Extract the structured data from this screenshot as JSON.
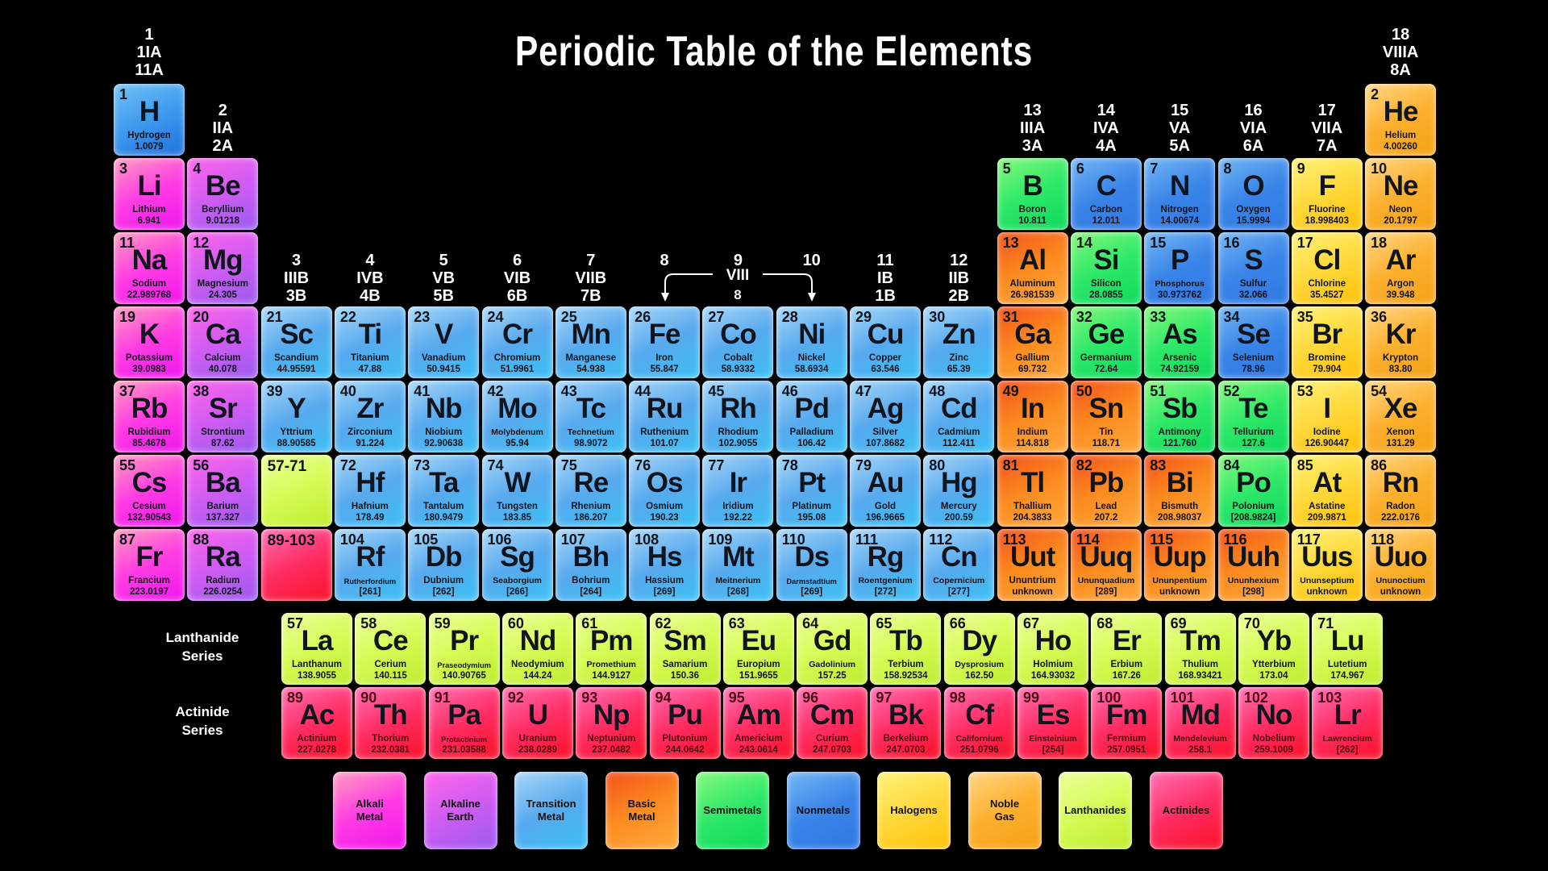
{
  "title": "Periodic Table of the Elements",
  "viii_bracket": {
    "label": "VIII",
    "sublabel": "8"
  },
  "series_labels": {
    "lanthanide": "Lanthanide\nSeries",
    "actinide": "Actinide\nSeries"
  },
  "group_labels": [
    {
      "col": 1,
      "band": "top",
      "lines": "1\n1IA\n11A"
    },
    {
      "col": 18,
      "band": "top",
      "lines": "18\nVIIIA\n8A"
    },
    {
      "col": 2,
      "band": "mid",
      "lines": "2\nIIA\n2A"
    },
    {
      "col": 13,
      "band": "mid",
      "lines": "13\nIIIA\n3A"
    },
    {
      "col": 14,
      "band": "mid",
      "lines": "14\nIVA\n4A"
    },
    {
      "col": 15,
      "band": "mid",
      "lines": "15\nVA\n5A"
    },
    {
      "col": 16,
      "band": "mid",
      "lines": "16\nVIA\n6A"
    },
    {
      "col": 17,
      "band": "mid",
      "lines": "17\nVIIA\n7A"
    },
    {
      "col": 3,
      "band": "low",
      "lines": "3\nIIIB\n3B"
    },
    {
      "col": 4,
      "band": "low",
      "lines": "4\nIVB\n4B"
    },
    {
      "col": 5,
      "band": "low",
      "lines": "5\nVB\n5B"
    },
    {
      "col": 6,
      "band": "low",
      "lines": "6\nVIB\n6B"
    },
    {
      "col": 7,
      "band": "low",
      "lines": "7\nVIIB\n7B"
    },
    {
      "col": 8,
      "band": "low",
      "lines": "8"
    },
    {
      "col": 9,
      "band": "low",
      "lines": "9"
    },
    {
      "col": 10,
      "band": "low",
      "lines": "10"
    },
    {
      "col": 11,
      "band": "low",
      "lines": "11\nIB\n1B"
    },
    {
      "col": 12,
      "band": "low",
      "lines": "12\nIIB\n2B"
    }
  ],
  "element_fields": [
    "number",
    "symbol",
    "name",
    "mass",
    "category",
    "row",
    "col"
  ],
  "elements": [
    [
      1,
      "H",
      "Hydrogen",
      "1.0079",
      "hydrogen",
      1,
      1
    ],
    [
      2,
      "He",
      "Helium",
      "4.00260",
      "noble",
      1,
      18
    ],
    [
      3,
      "Li",
      "Lithium",
      "6.941",
      "alkali",
      2,
      1
    ],
    [
      4,
      "Be",
      "Beryllium",
      "9.01218",
      "alkaline",
      2,
      2
    ],
    [
      5,
      "B",
      "Boron",
      "10.811",
      "semimetal",
      2,
      13
    ],
    [
      6,
      "C",
      "Carbon",
      "12.011",
      "nonmetal",
      2,
      14
    ],
    [
      7,
      "N",
      "Nitrogen",
      "14.00674",
      "nonmetal",
      2,
      15
    ],
    [
      8,
      "O",
      "Oxygen",
      "15.9994",
      "nonmetal",
      2,
      16
    ],
    [
      9,
      "F",
      "Fluorine",
      "18.998403",
      "halogen",
      2,
      17
    ],
    [
      10,
      "Ne",
      "Neon",
      "20.1797",
      "noble",
      2,
      18
    ],
    [
      11,
      "Na",
      "Sodium",
      "22.989768",
      "alkali",
      3,
      1
    ],
    [
      12,
      "Mg",
      "Magnesium",
      "24.305",
      "alkaline",
      3,
      2
    ],
    [
      13,
      "Al",
      "Aluminum",
      "26.981539",
      "basic",
      3,
      13
    ],
    [
      14,
      "Si",
      "Silicon",
      "28.0855",
      "semimetal",
      3,
      14
    ],
    [
      15,
      "P",
      "Phosphorus",
      "30.973762",
      "nonmetal",
      3,
      15
    ],
    [
      16,
      "S",
      "Sulfur",
      "32.066",
      "nonmetal",
      3,
      16
    ],
    [
      17,
      "Cl",
      "Chlorine",
      "35.4527",
      "halogen",
      3,
      17
    ],
    [
      18,
      "Ar",
      "Argon",
      "39.948",
      "noble",
      3,
      18
    ],
    [
      19,
      "K",
      "Potassium",
      "39.0983",
      "alkali",
      4,
      1
    ],
    [
      20,
      "Ca",
      "Calcium",
      "40.078",
      "alkaline",
      4,
      2
    ],
    [
      21,
      "Sc",
      "Scandium",
      "44.95591",
      "transition",
      4,
      3
    ],
    [
      22,
      "Ti",
      "Titanium",
      "47.88",
      "transition",
      4,
      4
    ],
    [
      23,
      "V",
      "Vanadium",
      "50.9415",
      "transition",
      4,
      5
    ],
    [
      24,
      "Cr",
      "Chromium",
      "51.9961",
      "transition",
      4,
      6
    ],
    [
      25,
      "Mn",
      "Manganese",
      "54.938",
      "transition",
      4,
      7
    ],
    [
      26,
      "Fe",
      "Iron",
      "55.847",
      "transition",
      4,
      8
    ],
    [
      27,
      "Co",
      "Cobalt",
      "58.9332",
      "transition",
      4,
      9
    ],
    [
      28,
      "Ni",
      "Nickel",
      "58.6934",
      "transition",
      4,
      10
    ],
    [
      29,
      "Cu",
      "Copper",
      "63.546",
      "transition",
      4,
      11
    ],
    [
      30,
      "Zn",
      "Zinc",
      "65.39",
      "transition",
      4,
      12
    ],
    [
      31,
      "Ga",
      "Gallium",
      "69.732",
      "basic",
      4,
      13
    ],
    [
      32,
      "Ge",
      "Germanium",
      "72.64",
      "semimetal",
      4,
      14
    ],
    [
      33,
      "As",
      "Arsenic",
      "74.92159",
      "semimetal",
      4,
      15
    ],
    [
      34,
      "Se",
      "Selenium",
      "78.96",
      "nonmetal",
      4,
      16
    ],
    [
      35,
      "Br",
      "Bromine",
      "79.904",
      "halogen",
      4,
      17
    ],
    [
      36,
      "Kr",
      "Krypton",
      "83.80",
      "noble",
      4,
      18
    ],
    [
      37,
      "Rb",
      "Rubidium",
      "85.4678",
      "alkali",
      5,
      1
    ],
    [
      38,
      "Sr",
      "Strontium",
      "87.62",
      "alkaline",
      5,
      2
    ],
    [
      39,
      "Y",
      "Yttrium",
      "88.90585",
      "transition",
      5,
      3
    ],
    [
      40,
      "Zr",
      "Zirconium",
      "91.224",
      "transition",
      5,
      4
    ],
    [
      41,
      "Nb",
      "Niobium",
      "92.90638",
      "transition",
      5,
      5
    ],
    [
      42,
      "Mo",
      "Molybdenum",
      "95.94",
      "transition",
      5,
      6
    ],
    [
      43,
      "Tc",
      "Technetium",
      "98.9072",
      "transition",
      5,
      7
    ],
    [
      44,
      "Ru",
      "Ruthenium",
      "101.07",
      "transition",
      5,
      8
    ],
    [
      45,
      "Rh",
      "Rhodium",
      "102.9055",
      "transition",
      5,
      9
    ],
    [
      46,
      "Pd",
      "Palladium",
      "106.42",
      "transition",
      5,
      10
    ],
    [
      47,
      "Ag",
      "Silver",
      "107.8682",
      "transition",
      5,
      11
    ],
    [
      48,
      "Cd",
      "Cadmium",
      "112.411",
      "transition",
      5,
      12
    ],
    [
      49,
      "In",
      "Indium",
      "114.818",
      "basic",
      5,
      13
    ],
    [
      50,
      "Sn",
      "Tin",
      "118.71",
      "basic",
      5,
      14
    ],
    [
      51,
      "Sb",
      "Antimony",
      "121.760",
      "semimetal",
      5,
      15
    ],
    [
      52,
      "Te",
      "Tellurium",
      "127.6",
      "semimetal",
      5,
      16
    ],
    [
      53,
      "I",
      "Iodine",
      "126.90447",
      "halogen",
      5,
      17
    ],
    [
      54,
      "Xe",
      "Xenon",
      "131.29",
      "noble",
      5,
      18
    ],
    [
      55,
      "Cs",
      "Cesium",
      "132.90543",
      "alkali",
      6,
      1
    ],
    [
      56,
      "Ba",
      "Barium",
      "137.327",
      "alkaline",
      6,
      2
    ],
    [
      72,
      "Hf",
      "Hafnium",
      "178.49",
      "transition",
      6,
      4
    ],
    [
      73,
      "Ta",
      "Tantalum",
      "180.9479",
      "transition",
      6,
      5
    ],
    [
      74,
      "W",
      "Tungsten",
      "183.85",
      "transition",
      6,
      6
    ],
    [
      75,
      "Re",
      "Rhenium",
      "186.207",
      "transition",
      6,
      7
    ],
    [
      76,
      "Os",
      "Osmium",
      "190.23",
      "transition",
      6,
      8
    ],
    [
      77,
      "Ir",
      "Iridium",
      "192.22",
      "transition",
      6,
      9
    ],
    [
      78,
      "Pt",
      "Platinum",
      "195.08",
      "transition",
      6,
      10
    ],
    [
      79,
      "Au",
      "Gold",
      "196.9665",
      "transition",
      6,
      11
    ],
    [
      80,
      "Hg",
      "Mercury",
      "200.59",
      "transition",
      6,
      12
    ],
    [
      81,
      "Tl",
      "Thallium",
      "204.3833",
      "basic",
      6,
      13
    ],
    [
      82,
      "Pb",
      "Lead",
      "207.2",
      "basic",
      6,
      14
    ],
    [
      83,
      "Bi",
      "Bismuth",
      "208.98037",
      "basic",
      6,
      15
    ],
    [
      84,
      "Po",
      "Polonium",
      "[208.9824]",
      "semimetal",
      6,
      16
    ],
    [
      85,
      "At",
      "Astatine",
      "209.9871",
      "halogen",
      6,
      17
    ],
    [
      86,
      "Rn",
      "Radon",
      "222.0176",
      "noble",
      6,
      18
    ],
    [
      87,
      "Fr",
      "Francium",
      "223.0197",
      "alkali",
      7,
      1
    ],
    [
      88,
      "Ra",
      "Radium",
      "226.0254",
      "alkaline",
      7,
      2
    ],
    [
      104,
      "Rf",
      "Rutherfordium",
      "[261]",
      "transition",
      7,
      4
    ],
    [
      105,
      "Db",
      "Dubnium",
      "[262]",
      "transition",
      7,
      5
    ],
    [
      106,
      "Sg",
      "Seaborgium",
      "[266]",
      "transition",
      7,
      6
    ],
    [
      107,
      "Bh",
      "Bohrium",
      "[264]",
      "transition",
      7,
      7
    ],
    [
      108,
      "Hs",
      "Hassium",
      "[269]",
      "transition",
      7,
      8
    ],
    [
      109,
      "Mt",
      "Meitnerium",
      "[268]",
      "transition",
      7,
      9
    ],
    [
      110,
      "Ds",
      "Darmstadtium",
      "[269]",
      "transition",
      7,
      10
    ],
    [
      111,
      "Rg",
      "Roentgenium",
      "[272]",
      "transition",
      7,
      11
    ],
    [
      112,
      "Cn",
      "Copernicium",
      "[277]",
      "transition",
      7,
      12
    ],
    [
      113,
      "Uut",
      "Ununtrium",
      "unknown",
      "basic",
      7,
      13
    ],
    [
      114,
      "Uuq",
      "Ununquadium",
      "[289]",
      "basic",
      7,
      14
    ],
    [
      115,
      "Uup",
      "Ununpentium",
      "unknown",
      "basic",
      7,
      15
    ],
    [
      116,
      "Uuh",
      "Ununhexium",
      "[298]",
      "basic",
      7,
      16
    ],
    [
      117,
      "Uus",
      "Ununseptium",
      "unknown",
      "halogen",
      7,
      17
    ],
    [
      118,
      "Uuo",
      "Ununoctium",
      "unknown",
      "noble",
      7,
      18
    ],
    [
      57,
      "La",
      "Lanthanum",
      "138.9055",
      "lanthanide",
      8,
      1
    ],
    [
      58,
      "Ce",
      "Cerium",
      "140.115",
      "lanthanide",
      8,
      2
    ],
    [
      59,
      "Pr",
      "Praseodymium",
      "140.90765",
      "lanthanide",
      8,
      3
    ],
    [
      60,
      "Nd",
      "Neodymium",
      "144.24",
      "lanthanide",
      8,
      4
    ],
    [
      61,
      "Pm",
      "Promethium",
      "144.9127",
      "lanthanide",
      8,
      5
    ],
    [
      62,
      "Sm",
      "Samarium",
      "150.36",
      "lanthanide",
      8,
      6
    ],
    [
      63,
      "Eu",
      "Europium",
      "151.9655",
      "lanthanide",
      8,
      7
    ],
    [
      64,
      "Gd",
      "Gadolinium",
      "157.25",
      "lanthanide",
      8,
      8
    ],
    [
      65,
      "Tb",
      "Terbium",
      "158.92534",
      "lanthanide",
      8,
      9
    ],
    [
      66,
      "Dy",
      "Dysprosium",
      "162.50",
      "lanthanide",
      8,
      10
    ],
    [
      67,
      "Ho",
      "Holmium",
      "164.93032",
      "lanthanide",
      8,
      11
    ],
    [
      68,
      "Er",
      "Erbium",
      "167.26",
      "lanthanide",
      8,
      12
    ],
    [
      69,
      "Tm",
      "Thulium",
      "168.93421",
      "lanthanide",
      8,
      13
    ],
    [
      70,
      "Yb",
      "Ytterbium",
      "173.04",
      "lanthanide",
      8,
      14
    ],
    [
      71,
      "Lu",
      "Lutetium",
      "174.967",
      "lanthanide",
      8,
      15
    ],
    [
      89,
      "Ac",
      "Actinium",
      "227.0278",
      "actinide",
      9,
      1
    ],
    [
      90,
      "Th",
      "Thorium",
      "232.0381",
      "actinide",
      9,
      2
    ],
    [
      91,
      "Pa",
      "Protactinium",
      "231.03588",
      "actinide",
      9,
      3
    ],
    [
      92,
      "U",
      "Uranium",
      "238.0289",
      "actinide",
      9,
      4
    ],
    [
      93,
      "Np",
      "Neptunium",
      "237.0482",
      "actinide",
      9,
      5
    ],
    [
      94,
      "Pu",
      "Plutonium",
      "244.0642",
      "actinide",
      9,
      6
    ],
    [
      95,
      "Am",
      "Americium",
      "243.0614",
      "actinide",
      9,
      7
    ],
    [
      96,
      "Cm",
      "Curium",
      "247.0703",
      "actinide",
      9,
      8
    ],
    [
      97,
      "Bk",
      "Berkelium",
      "247.0703",
      "actinide",
      9,
      9
    ],
    [
      98,
      "Cf",
      "Californium",
      "251.0796",
      "actinide",
      9,
      10
    ],
    [
      99,
      "Es",
      "Einsteinium",
      "[254]",
      "actinide",
      9,
      11
    ],
    [
      100,
      "Fm",
      "Fermium",
      "257.0951",
      "actinide",
      9,
      12
    ],
    [
      101,
      "Md",
      "Mendelevium",
      "258.1",
      "actinide",
      9,
      13
    ],
    [
      102,
      "No",
      "Nobelium",
      "259.1009",
      "actinide",
      9,
      14
    ],
    [
      103,
      "Lr",
      "Lawrencium",
      "[262]",
      "actinide",
      9,
      15
    ]
  ],
  "placeholders": [
    {
      "label": "57-71",
      "category": "lanthanide",
      "row": 6,
      "col": 3
    },
    {
      "label": "89-103",
      "category": "actinide",
      "row": 7,
      "col": 3
    }
  ],
  "legend": [
    {
      "label": "Alkali\nMetal",
      "category": "alkali"
    },
    {
      "label": "Alkaline\nEarth",
      "category": "alkaline"
    },
    {
      "label": "Transition\nMetal",
      "category": "transition"
    },
    {
      "label": "Basic\nMetal",
      "category": "basic"
    },
    {
      "label": "Semimetals",
      "category": "semimetal"
    },
    {
      "label": "Nonmetals",
      "category": "nonmetal"
    },
    {
      "label": "Halogens",
      "category": "halogen"
    },
    {
      "label": "Noble\nGas",
      "category": "noble"
    },
    {
      "label": "Lanthanides",
      "category": "lanthanide"
    },
    {
      "label": "Actinides",
      "category": "actinide"
    }
  ],
  "colors": {
    "hydrogen": [
      "#6fc2f5",
      "#3f9aee",
      "#1d6fdd"
    ],
    "nonmetal": [
      "#74b6f4",
      "#3a85e8",
      "#2e77e2"
    ],
    "transition": [
      "#a8d7f8",
      "#57a9ee",
      "#3cc0f3"
    ],
    "alkali": [
      "#ff9dc0",
      "#ff3ce3",
      "#f014ee"
    ],
    "alkaline": [
      "#ff66ea",
      "#cf5cf2",
      "#9a5af0"
    ],
    "basic": [
      "#f4511c",
      "#fb8c1f",
      "#ffa93d"
    ],
    "semimetal": [
      "#86f97d",
      "#2ee868",
      "#0cd95c"
    ],
    "halogen": [
      "#fff37a",
      "#ffd83a",
      "#ffc107"
    ],
    "noble": [
      "#ffd683",
      "#fcb02f",
      "#f5a214"
    ],
    "lanthanide": [
      "#eaff9a",
      "#d6fb55",
      "#bfeb2e"
    ],
    "actinide": [
      "#ff70b5",
      "#ff2d63",
      "#fa1128"
    ],
    "background": "#000000",
    "label_text": "#ffffff",
    "tile_text": "#10141c"
  }
}
